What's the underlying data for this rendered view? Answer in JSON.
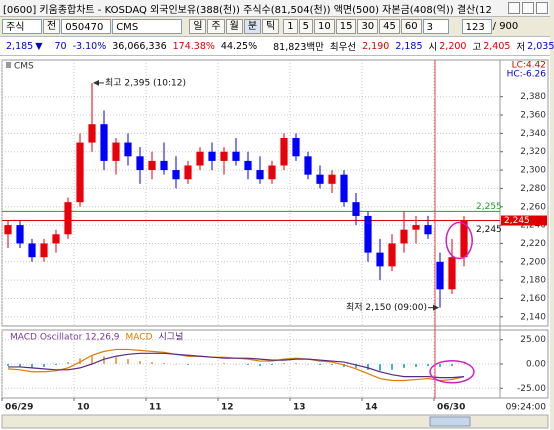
{
  "window": {
    "title": "[0600] 키움종합차트 - KOSDAQ 외국인보유(388(천)) 주식수(81,504(천)) 액면(500) 자본금(408(억)) 결산(12"
  },
  "toolbar": {
    "market": "주식",
    "prefix": "전",
    "code": "050470",
    "name": "CMS",
    "periods": [
      "일",
      "주",
      "월",
      "분",
      "틱"
    ],
    "intervals": [
      "1",
      "5",
      "10",
      "15",
      "30",
      "45",
      "60"
    ],
    "interval_input": "3",
    "count": "123",
    "max_count": "/ 900"
  },
  "quote": {
    "price": "2,185",
    "direction": "▼",
    "change": "70",
    "change_rate": "-3.10%",
    "volume": "36,066,336",
    "volume_ratio": "174.38%",
    "ratio2": "44.25%",
    "trade_amount": "81,823백만",
    "best_label": "최우선",
    "ask": "2,190",
    "bid": "2,185",
    "open_label": "시",
    "open": "2,200",
    "high_label": "고",
    "high": "2,405",
    "low_label": "저",
    "low": "2,035"
  },
  "time_label": "09:24:00",
  "chart_data": [
    {
      "type": "candlestick",
      "title": "CMS",
      "info": [
        {
          "text": "LC:4.42",
          "color": "#e00000"
        },
        {
          "text": "HC:-6.26",
          "color": "#0000dd"
        }
      ],
      "categories": [
        "06/29",
        null,
        null,
        null,
        null,
        null,
        "10",
        null,
        null,
        null,
        null,
        null,
        "11",
        null,
        null,
        null,
        null,
        null,
        "12",
        null,
        null,
        null,
        null,
        null,
        "13",
        null,
        null,
        null,
        null,
        null,
        "14",
        null,
        null,
        null,
        null,
        null,
        "06/30",
        null,
        null
      ],
      "open": [
        2230,
        2240,
        2220,
        2205,
        2220,
        2230,
        2265,
        2330,
        2350,
        2310,
        2330,
        2315,
        2300,
        2310,
        2300,
        2290,
        2305,
        2320,
        2310,
        2320,
        2310,
        2300,
        2290,
        2305,
        2335,
        2315,
        2295,
        2285,
        2295,
        2265,
        2250,
        2210,
        2195,
        2220,
        2235,
        2240,
        2200,
        2170,
        2205
      ],
      "high": [
        2245,
        2245,
        2225,
        2225,
        2235,
        2270,
        2340,
        2395,
        2365,
        2335,
        2340,
        2325,
        2320,
        2330,
        2315,
        2310,
        2325,
        2330,
        2325,
        2335,
        2320,
        2315,
        2310,
        2340,
        2340,
        2320,
        2305,
        2300,
        2300,
        2275,
        2255,
        2225,
        2230,
        2255,
        2250,
        2250,
        2210,
        2225,
        2250
      ],
      "low": [
        2215,
        2215,
        2200,
        2200,
        2210,
        2225,
        2260,
        2320,
        2300,
        2295,
        2305,
        2285,
        2290,
        2295,
        2280,
        2285,
        2300,
        2300,
        2295,
        2305,
        2290,
        2285,
        2285,
        2300,
        2310,
        2290,
        2280,
        2275,
        2260,
        2240,
        2200,
        2180,
        2190,
        2210,
        2220,
        2225,
        2150,
        2165,
        2195
      ],
      "close": [
        2240,
        2220,
        2205,
        2220,
        2230,
        2265,
        2330,
        2350,
        2310,
        2330,
        2315,
        2300,
        2310,
        2300,
        2290,
        2305,
        2320,
        2310,
        2320,
        2310,
        2300,
        2290,
        2305,
        2335,
        2315,
        2295,
        2285,
        2295,
        2265,
        2250,
        2210,
        2195,
        2220,
        2235,
        2240,
        2230,
        2170,
        2205,
        2245
      ],
      "up_color": "#e8000b",
      "down_color": "#0000ff",
      "ylim": [
        2130,
        2420
      ],
      "yticks": [
        {
          "value": 2140,
          "label": "2,140"
        },
        {
          "value": 2160,
          "label": "2,160"
        },
        {
          "value": 2180,
          "label": "2,180"
        },
        {
          "value": 2200,
          "label": "2,200"
        },
        {
          "value": 2220,
          "label": "2,220"
        },
        {
          "value": 2240,
          "label": "2,240"
        },
        {
          "value": 2260,
          "label": "2,260"
        },
        {
          "value": 2280,
          "label": "2,280"
        },
        {
          "value": 2300,
          "label": "2,300"
        },
        {
          "value": 2320,
          "label": "2,320"
        },
        {
          "value": 2340,
          "label": "2,340"
        },
        {
          "value": 2360,
          "label": "2,360"
        },
        {
          "value": 2380,
          "label": "2,380"
        }
      ],
      "grid": true,
      "reference_lines": [
        {
          "value": 2255,
          "label": "2,255",
          "color": "#2a9d2a",
          "boxed": false
        },
        {
          "value": 2245,
          "label": "2,245",
          "color": "#e00000",
          "boxed": true
        }
      ],
      "last_price": {
        "value": 2245,
        "label": "2,245"
      },
      "annotations": {
        "high": "최고 2,395 (10:12)",
        "low": "최저 2,150 (09:00)"
      }
    },
    {
      "type": "macd",
      "series": [
        {
          "name": "MACD Oscillator 12,26,9",
          "color": "#f4a460",
          "negative_color": "#45b0d8",
          "legend_color": "#7a3a9a",
          "values": [
            -2,
            -3,
            -4,
            -3,
            -1,
            2,
            6,
            9,
            8,
            7,
            5,
            3,
            2,
            1,
            0,
            -1,
            0,
            0,
            1,
            0,
            -1,
            -2,
            -1,
            1,
            1,
            0,
            -1,
            -1,
            -3,
            -4,
            -6,
            -7,
            -6,
            -4,
            -3,
            -2,
            -3,
            -2,
            0
          ]
        },
        {
          "name": "MACD",
          "color": "#e07b00",
          "values": [
            -5,
            -6,
            -8,
            -8,
            -7,
            -4,
            2,
            9,
            13,
            15,
            15,
            14,
            13,
            12,
            10,
            8,
            8,
            7,
            7,
            6,
            5,
            3,
            3,
            5,
            6,
            5,
            3,
            2,
            -1,
            -5,
            -10,
            -15,
            -17,
            -17,
            -16,
            -15,
            -17,
            -16,
            -13
          ]
        },
        {
          "name": "시그널",
          "color": "#5a2a82",
          "values": [
            -3,
            -3,
            -4,
            -5,
            -6,
            -6,
            -4,
            0,
            5,
            8,
            10,
            11,
            11,
            11,
            10,
            9,
            8,
            7,
            6,
            6,
            6,
            5,
            4,
            4,
            5,
            5,
            4,
            3,
            2,
            -1,
            -4,
            -8,
            -11,
            -13,
            -13,
            -13,
            -14,
            -14,
            -13
          ]
        }
      ],
      "ylim": [
        -35,
        35
      ],
      "yticks": [
        {
          "value": 25,
          "label": "25.00"
        },
        {
          "value": 0,
          "label": "0.00"
        },
        {
          "value": -25,
          "label": "-25.00"
        }
      ],
      "grid": true
    }
  ]
}
